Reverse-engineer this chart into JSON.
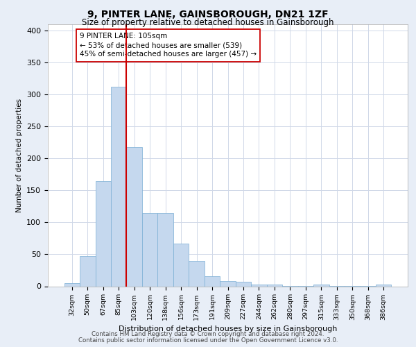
{
  "title": "9, PINTER LANE, GAINSBOROUGH, DN21 1ZF",
  "subtitle": "Size of property relative to detached houses in Gainsborough",
  "xlabel": "Distribution of detached houses by size in Gainsborough",
  "ylabel": "Number of detached properties",
  "bar_color": "#c5d8ee",
  "bar_edge_color": "#7aaed4",
  "categories": [
    "32sqm",
    "50sqm",
    "67sqm",
    "85sqm",
    "103sqm",
    "120sqm",
    "138sqm",
    "156sqm",
    "173sqm",
    "191sqm",
    "209sqm",
    "227sqm",
    "244sqm",
    "262sqm",
    "280sqm",
    "297sqm",
    "315sqm",
    "333sqm",
    "350sqm",
    "368sqm",
    "386sqm"
  ],
  "values": [
    5,
    47,
    165,
    312,
    218,
    115,
    115,
    67,
    40,
    16,
    8,
    7,
    3,
    3,
    1,
    1,
    3,
    1,
    1,
    1,
    3
  ],
  "vline_x_index": 3,
  "vline_color": "#cc0000",
  "annotation_text": "9 PINTER LANE: 105sqm\n← 53% of detached houses are smaller (539)\n45% of semi-detached houses are larger (457) →",
  "annotation_box_color": "white",
  "annotation_box_edge": "#cc0000",
  "ylim": [
    0,
    410
  ],
  "yticks": [
    0,
    50,
    100,
    150,
    200,
    250,
    300,
    350,
    400
  ],
  "footer1": "Contains HM Land Registry data © Crown copyright and database right 2024.",
  "footer2": "Contains public sector information licensed under the Open Government Licence v3.0.",
  "bg_color": "#e8eef7",
  "plot_bg_color": "white",
  "grid_color": "#d0d8e8"
}
